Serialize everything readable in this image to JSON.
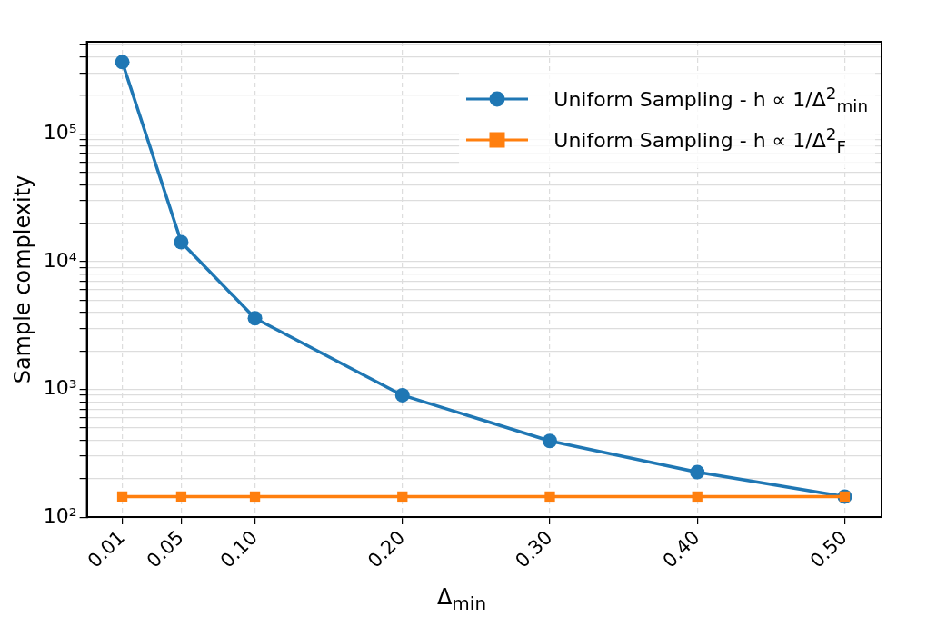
{
  "chart_data": {
    "type": "line",
    "xlabel": "Δ$_{min}$",
    "ylabel": "Sample complexity",
    "x": [
      0.01,
      0.05,
      0.1,
      0.2,
      0.3,
      0.4,
      0.5
    ],
    "xlim": [
      -0.014,
      0.525
    ],
    "xticks": [
      {
        "value": 0.01,
        "label": "0.01"
      },
      {
        "value": 0.05,
        "label": "0.05"
      },
      {
        "value": 0.1,
        "label": "0.10"
      },
      {
        "value": 0.2,
        "label": "0.20"
      },
      {
        "value": 0.3,
        "label": "0.30"
      },
      {
        "value": 0.4,
        "label": "0.40"
      },
      {
        "value": 0.5,
        "label": "0.50"
      }
    ],
    "log": "y",
    "ylim": [
      100,
      525000
    ],
    "yticks": [
      {
        "value": 100,
        "label": "10²"
      },
      {
        "value": 200,
        "label": null
      },
      {
        "value": 300,
        "label": null
      },
      {
        "value": 400,
        "label": null
      },
      {
        "value": 500,
        "label": null
      },
      {
        "value": 600,
        "label": null
      },
      {
        "value": 700,
        "label": null
      },
      {
        "value": 800,
        "label": null
      },
      {
        "value": 900,
        "label": null
      },
      {
        "value": 1000,
        "label": "10³"
      },
      {
        "value": 2000,
        "label": null
      },
      {
        "value": 3000,
        "label": null
      },
      {
        "value": 4000,
        "label": null
      },
      {
        "value": 5000,
        "label": null
      },
      {
        "value": 6000,
        "label": null
      },
      {
        "value": 7000,
        "label": null
      },
      {
        "value": 8000,
        "label": null
      },
      {
        "value": 9000,
        "label": null
      },
      {
        "value": 10000,
        "label": "10⁴"
      },
      {
        "value": 20000,
        "label": null
      },
      {
        "value": 30000,
        "label": null
      },
      {
        "value": 40000,
        "label": null
      },
      {
        "value": 50000,
        "label": null
      },
      {
        "value": 60000,
        "label": null
      },
      {
        "value": 70000,
        "label": null
      },
      {
        "value": 80000,
        "label": null
      },
      {
        "value": 90000,
        "label": null
      },
      {
        "value": 100000,
        "label": "10⁵"
      },
      {
        "value": 200000,
        "label": null
      },
      {
        "value": 300000,
        "label": null
      },
      {
        "value": 400000,
        "label": null
      },
      {
        "value": 500000,
        "label": null
      }
    ],
    "grid": true,
    "legend": "top right",
    "line_style": "solid",
    "series": [
      {
        "name": "Uniform Sampling - h ∝ 1/Δ$^{2}$$_{min}$",
        "color": "#1f77b4",
        "marker": "circle",
        "values": [
          364000,
          14200,
          3600,
          900,
          395,
          225,
          145
        ]
      },
      {
        "name": "Uniform Sampling - h ∝ 1/Δ$^{2}$$_{F}$",
        "color": "#ff7f0e",
        "marker": "square",
        "values": [
          145,
          145,
          145,
          145,
          145,
          145,
          145
        ]
      }
    ]
  }
}
